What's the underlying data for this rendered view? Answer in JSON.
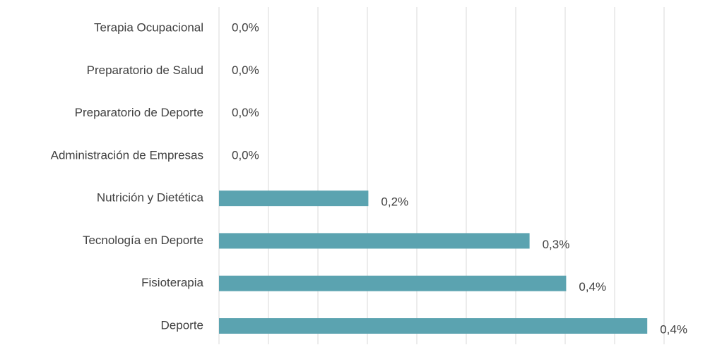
{
  "chart_data": {
    "type": "hbar",
    "categories": [
      "Terapia Ocupacional",
      "Preparatorio de Salud",
      "Preparatorio de Deporte",
      "Administración de Empresas",
      "Nutrición y Dietética",
      "Tecnología en Deporte",
      "Fisioterapia",
      "Deporte"
    ],
    "values": [
      0,
      0,
      0,
      0,
      0.151,
      0.314,
      0.351,
      0.433
    ],
    "value_labels": [
      "0,0%",
      "0,0%",
      "0,0%",
      "0,0%",
      "0,2%",
      "0,3%",
      "0,4%",
      "0,4%"
    ],
    "color": "#5ba3b0",
    "xlim": [
      0,
      0.45
    ],
    "xticks": [
      0,
      0.05,
      0.1,
      0.15,
      0.2,
      0.25,
      0.3,
      0.35,
      0.4,
      0.45
    ],
    "grid": true
  }
}
